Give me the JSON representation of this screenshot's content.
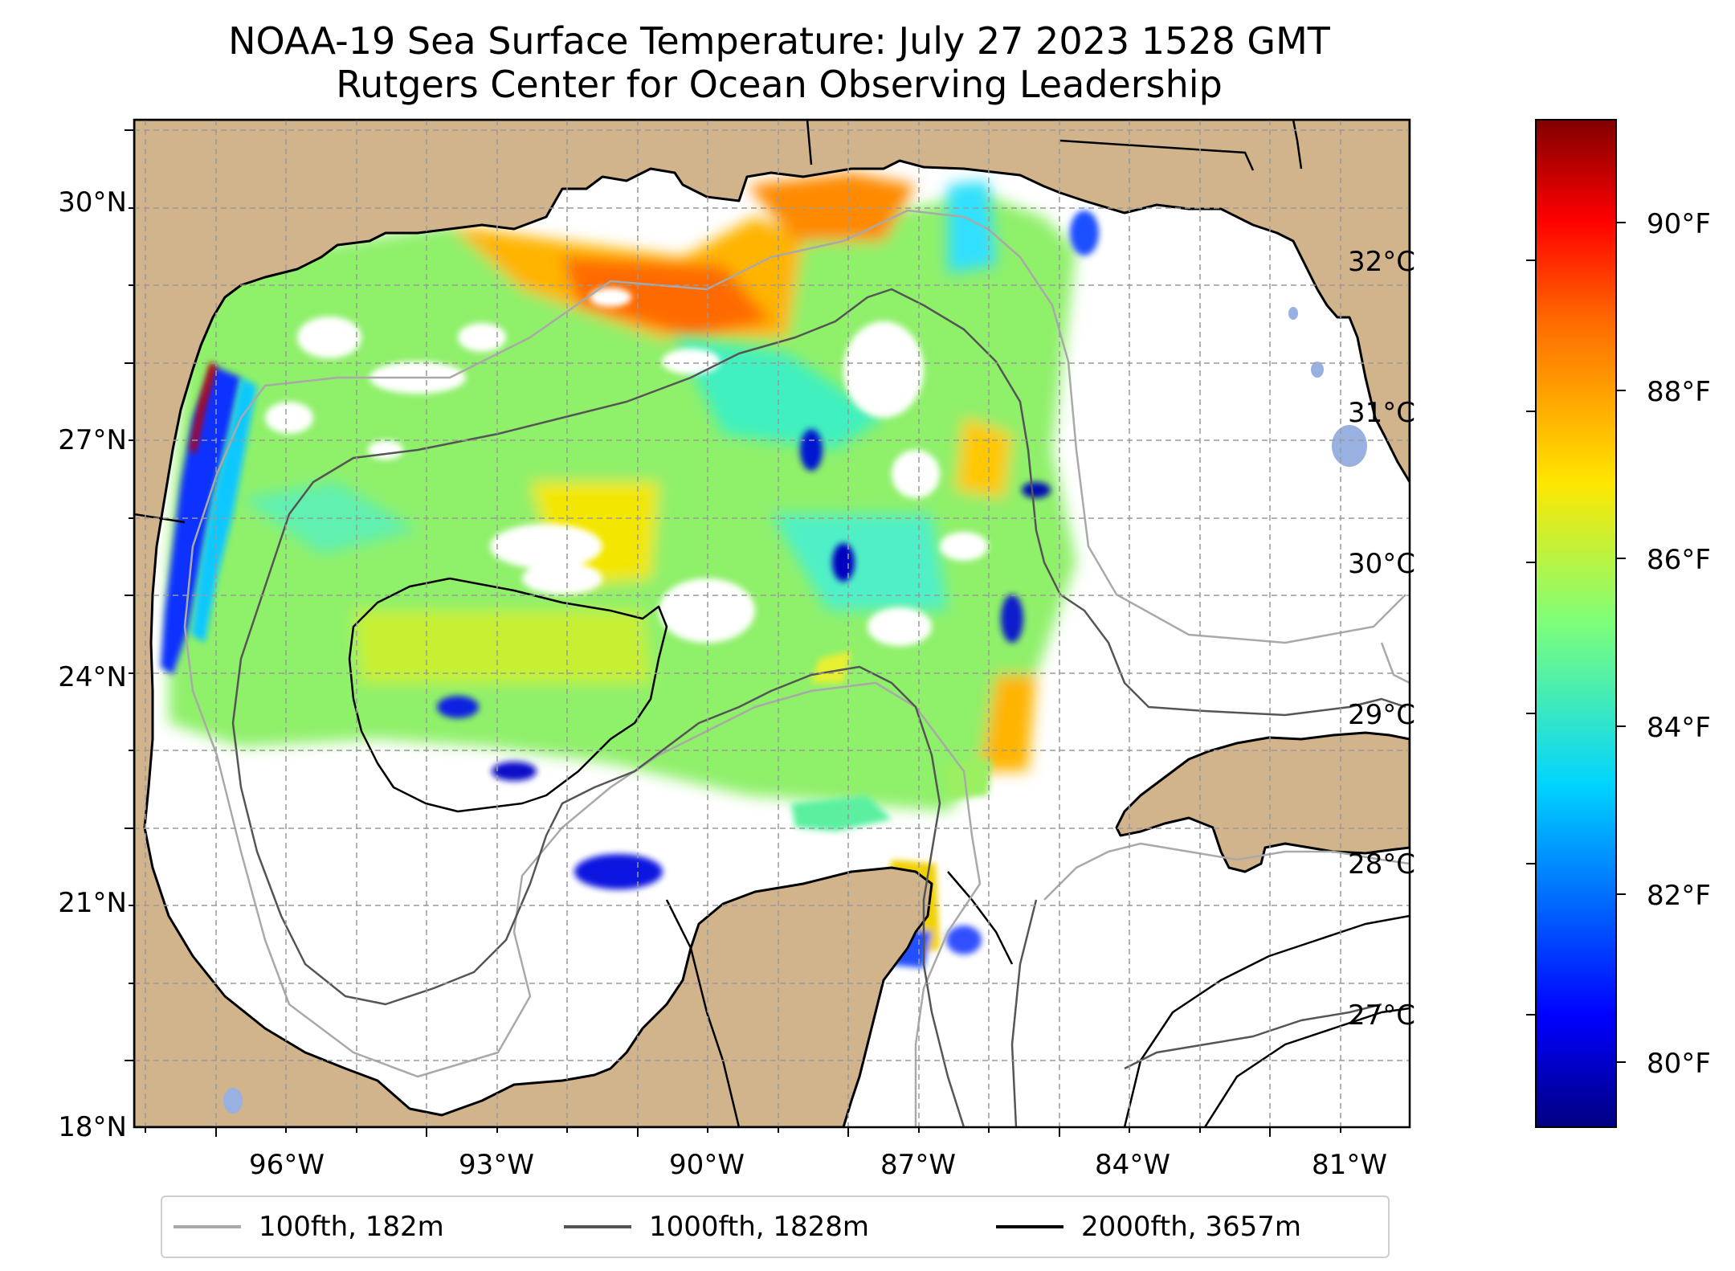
{
  "title": {
    "line1": "NOAA-19 Sea Surface Temperature: July 27 2023 1528 GMT",
    "line2": "Rutgers Center for Ocean Observing Leadership"
  },
  "map": {
    "region": "Gulf of Mexico",
    "extent": {
      "lon": [
        -98.3,
        -79.5
      ],
      "lat": [
        18,
        31.1
      ]
    },
    "land_color": "#d2b48c",
    "water_color": "#ffffff",
    "gridlines": true,
    "lat_ticks": [
      "30°N",
      "27°N",
      "24°N",
      "21°N",
      "18°N"
    ],
    "lon_ticks": [
      "96°W",
      "93°W",
      "90°W",
      "87°W",
      "84°W",
      "81°W"
    ]
  },
  "colorbar": {
    "colormap": "jet",
    "range_c": [
      26.3,
      32.9
    ],
    "celsius_ticks": [
      "32°C",
      "31°C",
      "30°C",
      "29°C",
      "28°C",
      "27°C"
    ],
    "fahrenheit_ticks": [
      "90°F",
      "88°F",
      "86°F",
      "84°F",
      "82°F",
      "80°F"
    ]
  },
  "legend": {
    "items": [
      {
        "label": "100fth, 182m",
        "color": "#a9a9a9"
      },
      {
        "label": "1000fth, 1828m",
        "color": "#555555"
      },
      {
        "label": "2000fth, 3657m",
        "color": "#000000"
      }
    ]
  }
}
